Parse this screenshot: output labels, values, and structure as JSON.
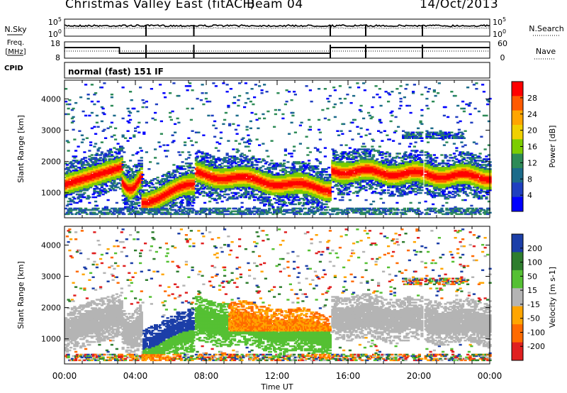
{
  "header": {
    "radar": "Christmas Valley East (fitACF)",
    "beam": "Beam 04",
    "date": "14/Oct/2013"
  },
  "chart_data": [
    {
      "type": "line",
      "panel": "noise",
      "left_label": "N.Sky",
      "right_label": "N.Search",
      "left_ticks": [
        "10^5",
        "10^0"
      ],
      "right_ticks": [
        "10^5",
        "10^0"
      ]
    },
    {
      "type": "line",
      "panel": "freq-nave",
      "left_label": "Freq. [MHz]",
      "right_label": "Nave",
      "left_ticks": [
        "18",
        "8"
      ],
      "right_ticks": [
        "60",
        "0"
      ],
      "cpid_label": "CPID",
      "cpid_text": "normal (fast) 151 IF",
      "freq_steps": [
        {
          "x0": 0.0,
          "x1": 3.1,
          "y": 14.5
        },
        {
          "x0": 3.1,
          "x1": 15.0,
          "y": 11.0
        },
        {
          "x0": 15.0,
          "x1": 24.0,
          "y": 14.5
        }
      ]
    },
    {
      "type": "heatmap",
      "panel": "power",
      "ylabel": "Slant Range [km]",
      "yticks": [
        1000,
        2000,
        3000,
        4000
      ],
      "ylim": [
        200,
        4600
      ],
      "xlim": [
        0,
        24
      ],
      "colorbar": {
        "label": "Power [dB]",
        "ticks": [
          "28",
          "24",
          "20",
          "16",
          "12",
          "8",
          "4"
        ],
        "colors": [
          "#ff0000",
          "#ff5a00",
          "#ffa500",
          "#f0d000",
          "#7ccd00",
          "#2e8b57",
          "#1c6b8a",
          "#1f3fc0",
          "#0000ff"
        ]
      }
    },
    {
      "type": "heatmap",
      "panel": "velocity",
      "ylabel": "Slant Range [km]",
      "yticks": [
        1000,
        2000,
        3000,
        4000
      ],
      "ylim": [
        200,
        4600
      ],
      "xlim": [
        0,
        24
      ],
      "xticks": [
        "00:00",
        "04:00",
        "08:00",
        "12:00",
        "16:00",
        "20:00",
        "00:00"
      ],
      "xlabel": "Time UT",
      "colorbar": {
        "label": "Velocity [m s-1]",
        "ticks": [
          "200",
          "100",
          "50",
          "15",
          "-15",
          "-50",
          "-100",
          "-200"
        ],
        "colors": [
          "#1c3fa8",
          "#2e7d2e",
          "#55c033",
          "#b4b4b4",
          "#ffa500",
          "#ff6a00",
          "#e02020"
        ]
      }
    }
  ]
}
